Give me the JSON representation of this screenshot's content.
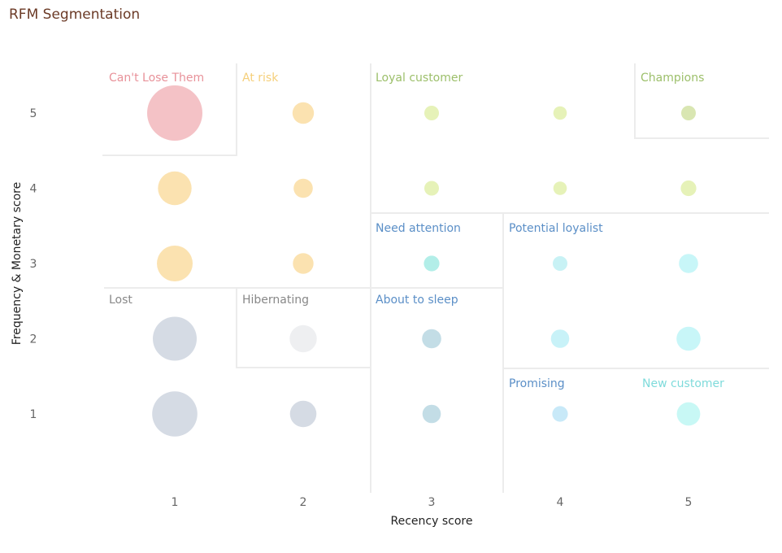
{
  "title": "RFM Segmentation",
  "chart_data": {
    "type": "scatter",
    "title": "RFM Segmentation",
    "xlabel": "Recency score",
    "ylabel": "Frequency & Monetary score",
    "x_ticks": [
      "1",
      "2",
      "3",
      "4",
      "5"
    ],
    "y_ticks": [
      "1",
      "2",
      "3",
      "4",
      "5"
    ],
    "xlim": [
      0.5,
      5.5
    ],
    "ylim": [
      0.1,
      5.7
    ],
    "grid": false,
    "segments": [
      {
        "name": "Can't Lose Them",
        "color": "#e8929a"
      },
      {
        "name": "At risk",
        "color": "#f5cf7a"
      },
      {
        "name": "Loyal customer",
        "color": "#9cbf6a"
      },
      {
        "name": "Champions",
        "color": "#9cbf6a"
      },
      {
        "name": "Need attention",
        "color": "#5b8fc7"
      },
      {
        "name": "Potential loyalist",
        "color": "#5b8fc7"
      },
      {
        "name": "Lost",
        "color": "#888888"
      },
      {
        "name": "Hibernating",
        "color": "#888888"
      },
      {
        "name": "About to sleep",
        "color": "#5b8fc7"
      },
      {
        "name": "Promising",
        "color": "#5b8fc7"
      },
      {
        "name": "New customer",
        "color": "#7fdbdb"
      }
    ],
    "points": [
      {
        "x": 1,
        "y": 5,
        "size": 100,
        "color": "#f4c2c6"
      },
      {
        "x": 2,
        "y": 5,
        "size": 15,
        "color": "#fbe2b0"
      },
      {
        "x": 3,
        "y": 5,
        "size": 7,
        "color": "#e6f2b8"
      },
      {
        "x": 4,
        "y": 5,
        "size": 6,
        "color": "#e6f2b8"
      },
      {
        "x": 5,
        "y": 5,
        "size": 7,
        "color": "#d9e6b2"
      },
      {
        "x": 1,
        "y": 4,
        "size": 37,
        "color": "#fbe2b0"
      },
      {
        "x": 2,
        "y": 4,
        "size": 12,
        "color": "#fbe2b0"
      },
      {
        "x": 3,
        "y": 4,
        "size": 7,
        "color": "#e6f2b8"
      },
      {
        "x": 4,
        "y": 4,
        "size": 6,
        "color": "#e6f2b8"
      },
      {
        "x": 5,
        "y": 4,
        "size": 8,
        "color": "#e6f2b8"
      },
      {
        "x": 1,
        "y": 3,
        "size": 42,
        "color": "#fbe2b0"
      },
      {
        "x": 2,
        "y": 3,
        "size": 14,
        "color": "#fbe2b0"
      },
      {
        "x": 3,
        "y": 3,
        "size": 8,
        "color": "#b2eee8"
      },
      {
        "x": 4,
        "y": 3,
        "size": 7,
        "color": "#c8f2f5"
      },
      {
        "x": 5,
        "y": 3,
        "size": 12,
        "color": "#c8f6f8"
      },
      {
        "x": 1,
        "y": 2,
        "size": 63,
        "color": "#d5dbe4"
      },
      {
        "x": 2,
        "y": 2,
        "size": 24,
        "color": "#eeeff1"
      },
      {
        "x": 3,
        "y": 2,
        "size": 12,
        "color": "#c3dde6"
      },
      {
        "x": 4,
        "y": 2,
        "size": 11,
        "color": "#c8f2f8"
      },
      {
        "x": 5,
        "y": 2,
        "size": 19,
        "color": "#c8f6f8"
      },
      {
        "x": 1,
        "y": 1,
        "size": 67,
        "color": "#d5dbe4"
      },
      {
        "x": 2,
        "y": 1,
        "size": 23,
        "color": "#d5dbe4"
      },
      {
        "x": 3,
        "y": 1,
        "size": 11,
        "color": "#c3dde6"
      },
      {
        "x": 4,
        "y": 1,
        "size": 8,
        "color": "#c8e9f8"
      },
      {
        "x": 5,
        "y": 1,
        "size": 18,
        "color": "#c8f8f5"
      }
    ]
  }
}
